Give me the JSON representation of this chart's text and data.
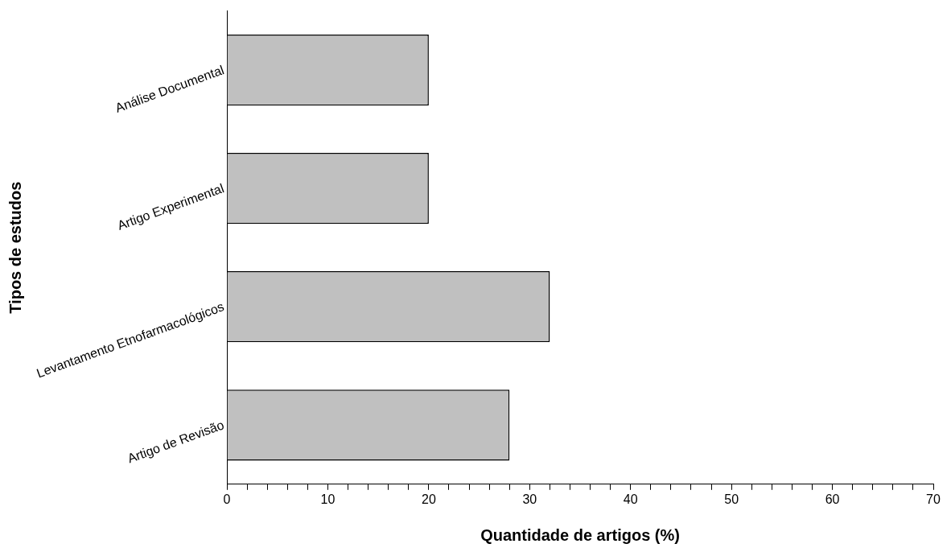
{
  "chart_data": {
    "type": "bar",
    "orientation": "horizontal",
    "xlabel": "Quantidade de artigos (%)",
    "ylabel": "Tipos de estudos",
    "categories": [
      "Análise Documental",
      "Artigo Experimental",
      "Levantamento Etnofarmacológicos",
      "Artigo de Revisão"
    ],
    "values": [
      20,
      20,
      32,
      28
    ],
    "color": "#c0c0c0",
    "xlim": [
      0,
      70
    ],
    "xticks": [
      0,
      {
        "value": 2,
        "label": null
      },
      {
        "value": 4,
        "label": null
      },
      {
        "value": 6,
        "label": null
      },
      {
        "value": 8,
        "label": null
      },
      10,
      {
        "value": 12,
        "label": null
      },
      {
        "value": 14,
        "label": null
      },
      {
        "value": 16,
        "label": null
      },
      {
        "value": 18,
        "label": null
      },
      20,
      {
        "value": 22,
        "label": null
      },
      {
        "value": 24,
        "label": null
      },
      {
        "value": 26,
        "label": null
      },
      {
        "value": 28,
        "label": null
      },
      30,
      {
        "value": 32,
        "label": null
      },
      {
        "value": 34,
        "label": null
      },
      {
        "value": 36,
        "label": null
      },
      {
        "value": 38,
        "label": null
      },
      40,
      {
        "value": 42,
        "label": null
      },
      {
        "value": 44,
        "label": null
      },
      {
        "value": 46,
        "label": null
      },
      {
        "value": 48,
        "label": null
      },
      50,
      {
        "value": 52,
        "label": null
      },
      {
        "value": 54,
        "label": null
      },
      {
        "value": 56,
        "label": null
      },
      {
        "value": 58,
        "label": null
      },
      60,
      {
        "value": 62,
        "label": null
      },
      {
        "value": 64,
        "label": null
      },
      {
        "value": 66,
        "label": null
      },
      {
        "value": 68,
        "label": null
      },
      70
    ],
    "grid": false,
    "legend": false
  }
}
